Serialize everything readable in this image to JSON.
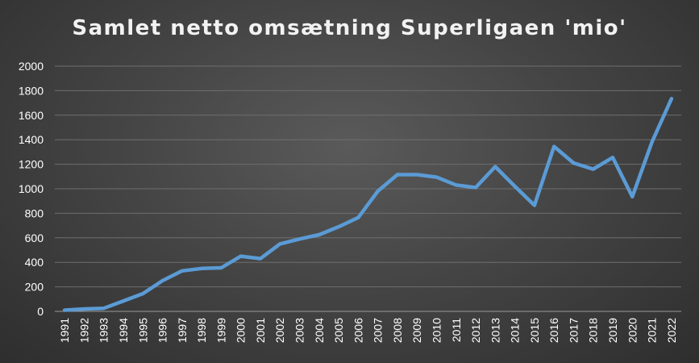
{
  "chart_data": {
    "type": "line",
    "title": "Samlet netto omsætning Superligaen 'mio'",
    "xlabel": "",
    "ylabel": "",
    "ylim": [
      0,
      2000
    ],
    "yticks": [
      0,
      200,
      400,
      600,
      800,
      1000,
      1200,
      1400,
      1600,
      1800,
      2000
    ],
    "grid": true,
    "legend": "none",
    "line_color": "#5b9bd5",
    "categories": [
      "1991",
      "1992",
      "1993",
      "1994",
      "1995",
      "1996",
      "1997",
      "1998",
      "1999",
      "2000",
      "2001",
      "2002",
      "2003",
      "2004",
      "2005",
      "2006",
      "2007",
      "2008",
      "2009",
      "2010",
      "2011",
      "2012",
      "2013",
      "2014",
      "2015",
      "2016",
      "2017",
      "2018",
      "2019",
      "2020",
      "2021",
      "2022"
    ],
    "series": [
      {
        "values": [
          10,
          20,
          25,
          85,
          145,
          250,
          330,
          350,
          355,
          450,
          430,
          550,
          590,
          625,
          690,
          765,
          980,
          1115,
          1115,
          1095,
          1030,
          1010,
          1180,
          1020,
          865,
          1345,
          1210,
          1160,
          1255,
          935,
          1380,
          1735
        ]
      }
    ]
  }
}
